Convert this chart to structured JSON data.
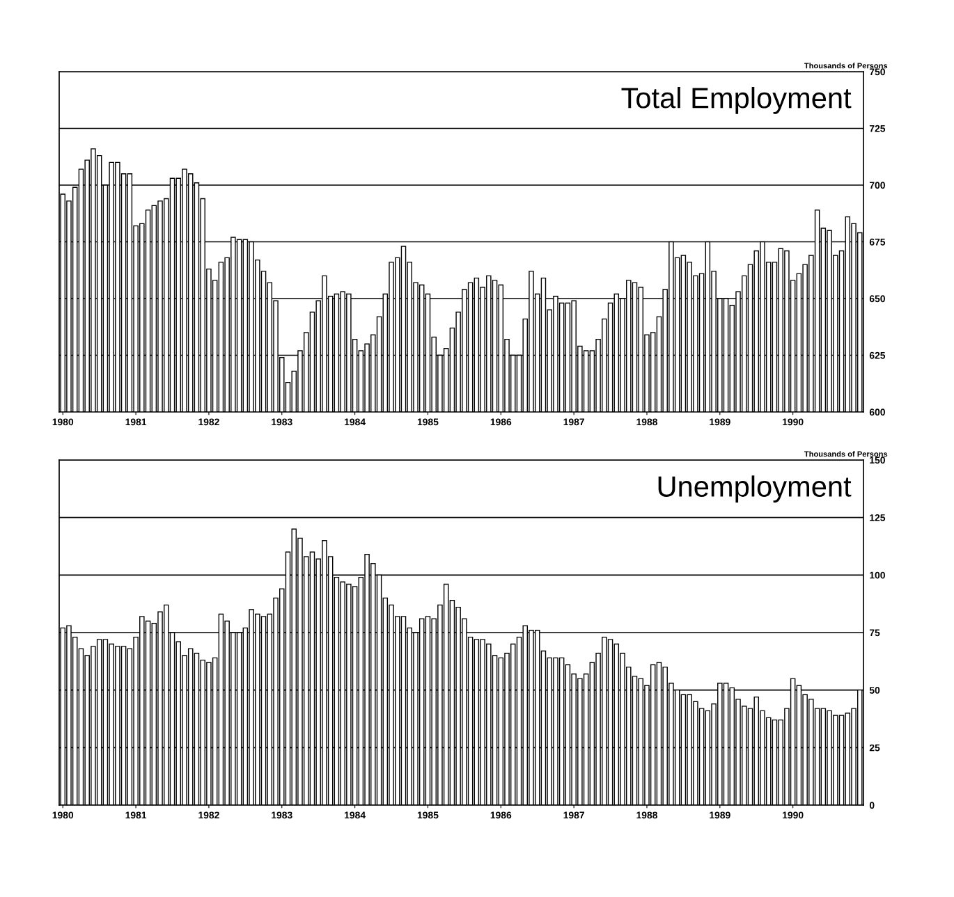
{
  "chart_data": [
    {
      "type": "bar",
      "title": "Total Employment",
      "ylabel": "Thousands of Persons",
      "color": "#ffffff",
      "grid": "y",
      "ylim": [
        600,
        750
      ],
      "yticks": [
        600,
        625,
        650,
        675,
        700,
        725,
        750
      ],
      "categories": [
        "1980",
        null,
        null,
        null,
        null,
        null,
        null,
        null,
        null,
        null,
        null,
        null,
        "1981",
        null,
        null,
        null,
        null,
        null,
        null,
        null,
        null,
        null,
        null,
        null,
        "1982",
        null,
        null,
        null,
        null,
        null,
        null,
        null,
        null,
        null,
        null,
        null,
        "1983",
        null,
        null,
        null,
        null,
        null,
        null,
        null,
        null,
        null,
        null,
        null,
        "1984",
        null,
        null,
        null,
        null,
        null,
        null,
        null,
        null,
        null,
        null,
        null,
        "1985",
        null,
        null,
        null,
        null,
        null,
        null,
        null,
        null,
        null,
        null,
        null,
        "1986",
        null,
        null,
        null,
        null,
        null,
        null,
        null,
        null,
        null,
        null,
        null,
        "1987",
        null,
        null,
        null,
        null,
        null,
        null,
        null,
        null,
        null,
        null,
        null,
        "1988",
        null,
        null,
        null,
        null,
        null,
        null,
        null,
        null,
        null,
        null,
        null,
        "1989",
        null,
        null,
        null,
        null,
        null,
        null,
        null,
        null,
        null,
        null,
        null,
        "1990",
        null,
        null,
        null,
        null,
        null,
        null,
        null,
        null,
        null,
        null,
        null
      ],
      "values": [
        696,
        693,
        699,
        707,
        711,
        716,
        713,
        700,
        710,
        710,
        705,
        705,
        682,
        683,
        689,
        691,
        693,
        694,
        703,
        703,
        707,
        705,
        701,
        694,
        663,
        658,
        666,
        668,
        677,
        676,
        676,
        675,
        667,
        662,
        657,
        649,
        624,
        613,
        618,
        627,
        635,
        644,
        649,
        660,
        651,
        652,
        653,
        652,
        632,
        627,
        630,
        634,
        642,
        652,
        666,
        668,
        673,
        666,
        657,
        656,
        652,
        633,
        625,
        628,
        637,
        644,
        654,
        657,
        659,
        655,
        660,
        658,
        656,
        632,
        625,
        625,
        641,
        662,
        652,
        659,
        645,
        651,
        648,
        648,
        649,
        629,
        627,
        627,
        632,
        641,
        648,
        652,
        650,
        658,
        657,
        655,
        634,
        635,
        642,
        654,
        675,
        668,
        669,
        666,
        660,
        661,
        675,
        662,
        650,
        650,
        647,
        653,
        660,
        665,
        671,
        675,
        666,
        666,
        672,
        671,
        658,
        661,
        665,
        669,
        689,
        681,
        680,
        669,
        671,
        686,
        683,
        679
      ]
    },
    {
      "type": "bar",
      "title": "Unemployment",
      "ylabel": "Thousands of Persons",
      "color": "#ffffff",
      "grid": "y",
      "ylim": [
        0,
        150
      ],
      "yticks": [
        0,
        25,
        50,
        75,
        100,
        125,
        150
      ],
      "categories": [
        "1980",
        null,
        null,
        null,
        null,
        null,
        null,
        null,
        null,
        null,
        null,
        null,
        "1981",
        null,
        null,
        null,
        null,
        null,
        null,
        null,
        null,
        null,
        null,
        null,
        "1982",
        null,
        null,
        null,
        null,
        null,
        null,
        null,
        null,
        null,
        null,
        null,
        "1983",
        null,
        null,
        null,
        null,
        null,
        null,
        null,
        null,
        null,
        null,
        null,
        "1984",
        null,
        null,
        null,
        null,
        null,
        null,
        null,
        null,
        null,
        null,
        null,
        "1985",
        null,
        null,
        null,
        null,
        null,
        null,
        null,
        null,
        null,
        null,
        null,
        "1986",
        null,
        null,
        null,
        null,
        null,
        null,
        null,
        null,
        null,
        null,
        null,
        "1987",
        null,
        null,
        null,
        null,
        null,
        null,
        null,
        null,
        null,
        null,
        null,
        "1988",
        null,
        null,
        null,
        null,
        null,
        null,
        null,
        null,
        null,
        null,
        null,
        "1989",
        null,
        null,
        null,
        null,
        null,
        null,
        null,
        null,
        null,
        null,
        null,
        "1990",
        null,
        null,
        null,
        null,
        null,
        null,
        null,
        null,
        null,
        null,
        null
      ],
      "values": [
        77,
        78,
        73,
        68,
        65,
        69,
        72,
        72,
        70,
        69,
        69,
        68,
        73,
        82,
        80,
        79,
        84,
        87,
        75,
        71,
        65,
        68,
        66,
        63,
        62,
        64,
        83,
        80,
        75,
        75,
        77,
        85,
        83,
        82,
        83,
        90,
        94,
        110,
        120,
        116,
        108,
        110,
        107,
        115,
        108,
        99,
        97,
        96,
        95,
        99,
        109,
        105,
        100,
        90,
        87,
        82,
        82,
        77,
        75,
        81,
        82,
        81,
        87,
        96,
        89,
        86,
        81,
        73,
        72,
        72,
        70,
        65,
        64,
        66,
        70,
        73,
        78,
        76,
        76,
        67,
        64,
        64,
        64,
        61,
        57,
        55,
        57,
        62,
        66,
        73,
        72,
        70,
        66,
        60,
        56,
        55,
        52,
        61,
        62,
        60,
        53,
        50,
        48,
        48,
        45,
        42,
        41,
        44,
        53,
        53,
        51,
        46,
        43,
        42,
        47,
        41,
        38,
        37,
        37,
        42,
        55,
        52,
        48,
        46,
        42,
        42,
        41,
        39,
        39,
        40,
        42,
        50
      ]
    }
  ]
}
